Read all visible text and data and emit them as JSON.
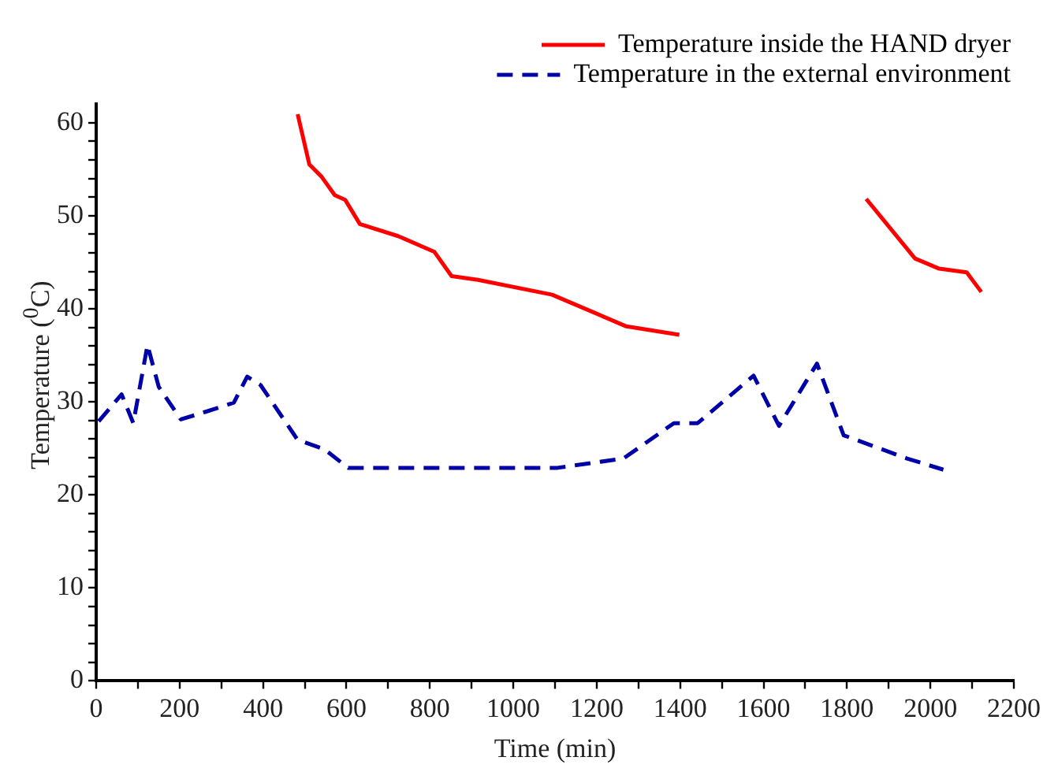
{
  "chart_data": {
    "type": "line",
    "xlabel": "Time (min)",
    "ylabel": "Temperature ($^{0}$C)",
    "xlim": [
      0,
      2200
    ],
    "ylim": [
      0,
      62
    ],
    "xticks": [
      0,
      {
        "value": 100,
        "label": null
      },
      200,
      {
        "value": 300,
        "label": null
      },
      400,
      {
        "value": 500,
        "label": null
      },
      600,
      {
        "value": 700,
        "label": null
      },
      800,
      {
        "value": 900,
        "label": null
      },
      1000,
      {
        "value": 1100,
        "label": null
      },
      1200,
      {
        "value": 1300,
        "label": null
      },
      1400,
      {
        "value": 1500,
        "label": null
      },
      1600,
      {
        "value": 1700,
        "label": null
      },
      1800,
      {
        "value": 1900,
        "label": null
      },
      2000,
      {
        "value": 2100,
        "label": null
      },
      2200
    ],
    "yticks": [
      0,
      {
        "value": 2,
        "label": null
      },
      {
        "value": 4,
        "label": null
      },
      {
        "value": 6,
        "label": null
      },
      {
        "value": 8,
        "label": null
      },
      10,
      {
        "value": 12,
        "label": null
      },
      {
        "value": 14,
        "label": null
      },
      {
        "value": 16,
        "label": null
      },
      {
        "value": 18,
        "label": null
      },
      20,
      {
        "value": 22,
        "label": null
      },
      {
        "value": 24,
        "label": null
      },
      {
        "value": 26,
        "label": null
      },
      {
        "value": 28,
        "label": null
      },
      30,
      {
        "value": 32,
        "label": null
      },
      {
        "value": 34,
        "label": null
      },
      {
        "value": 36,
        "label": null
      },
      {
        "value": 38,
        "label": null
      },
      40,
      {
        "value": 42,
        "label": null
      },
      {
        "value": 44,
        "label": null
      },
      {
        "value": 46,
        "label": null
      },
      {
        "value": 48,
        "label": null
      },
      50,
      {
        "value": 52,
        "label": null
      },
      {
        "value": 54,
        "label": null
      },
      {
        "value": 56,
        "label": null
      },
      {
        "value": 58,
        "label": null
      },
      60
    ],
    "grid": false,
    "legend": "top right",
    "marker": "none",
    "series": [
      {
        "name": "Temperature inside the HAND dryer",
        "color": "#ff0000",
        "line_style": "solid",
        "x": [
          483,
          511,
          540,
          572,
          597,
          632,
          724,
          811,
          852,
          915,
          1093,
          1271,
          1398,
          1600,
          1846,
          1963,
          2021,
          2087,
          2122
        ],
        "values": [
          60.9,
          55.5,
          54.2,
          52.2,
          51.7,
          49.1,
          47.8,
          46.1,
          43.5,
          43.1,
          41.5,
          38.1,
          37.2,
          null,
          51.8,
          45.4,
          44.3,
          43.9,
          41.8
        ]
      },
      {
        "name": "Temperature in the external environment",
        "color": "#0000a8",
        "line_style": "dashed",
        "x": [
          6,
          61,
          89,
          123,
          150,
          203,
          261,
          330,
          362,
          394,
          483,
          547,
          604,
          1106,
          1264,
          1385,
          1442,
          1576,
          1637,
          1728,
          1792,
          1944,
          2031
        ],
        "values": [
          27.9,
          30.8,
          27.7,
          36.1,
          31.6,
          28.1,
          28.9,
          29.9,
          32.7,
          31.8,
          25.9,
          24.9,
          22.9,
          22.9,
          23.9,
          27.7,
          27.7,
          32.8,
          27.4,
          34.1,
          26.4,
          23.9,
          22.7
        ]
      }
    ]
  }
}
